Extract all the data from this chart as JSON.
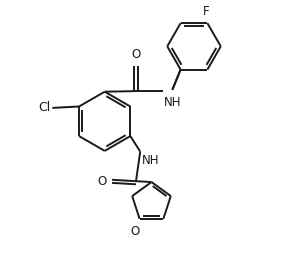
{
  "bg_color": "#ffffff",
  "line_color": "#1a1a1a",
  "line_width": 1.4,
  "font_size": 8.5,
  "figsize": [
    2.94,
    2.65
  ],
  "dpi": 100,
  "xlim": [
    0,
    10
  ],
  "ylim": [
    0,
    9
  ]
}
